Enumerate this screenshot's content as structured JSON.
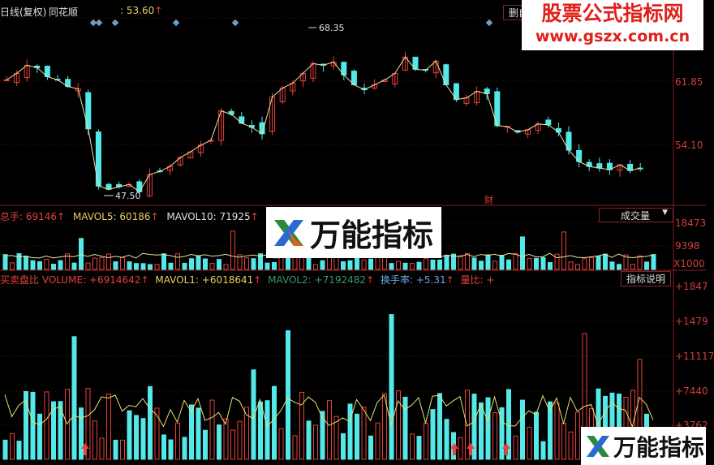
{
  "header": {
    "period": "日线(复权)",
    "stock": "同花顺",
    "price_label": ":",
    "price": "53.60",
    "button": "删自"
  },
  "main": {
    "axis": [
      "61.85",
      "54.10"
    ],
    "high_label": "68.35",
    "low_label": "47.50",
    "cai_label": "财",
    "closes": [
      62.0,
      62.8,
      63.8,
      63.5,
      62.4,
      62.0,
      61.2,
      60.9,
      56.0,
      49.0,
      48.6,
      48.9,
      49.2,
      48.3,
      50.4,
      50.8,
      51.4,
      52.5,
      53.2,
      54.0,
      54.6,
      58.2,
      57.8,
      56.7,
      56.2,
      55.4,
      59.9,
      61.0,
      61.6,
      62.8,
      64.0,
      63.8,
      64.2,
      62.6,
      61.4,
      60.8,
      61.4,
      62.0,
      62.8,
      64.8,
      63.3,
      63.2,
      64.3,
      61.4,
      59.6,
      59.8,
      60.6,
      60.3,
      56.4,
      56.3,
      55.6,
      55.9,
      56.6,
      56.5,
      55.6,
      53.4,
      52.0,
      51.4,
      51.2,
      51.0,
      51.6,
      50.9,
      51.2
    ]
  },
  "volume": {
    "label": "总手: 69146",
    "mavol5": "MAVOL5: 60186",
    "mavol10": "MAVOL10: 71925",
    "dropdown": "成交量",
    "axis": [
      "18473",
      "9398",
      "X1000"
    ]
  },
  "indicator": {
    "name": "买卖盘比",
    "volume": "VOLUME: +6914642",
    "mavol1": "MAVOL1: +6018641",
    "mavol2": "MAVOL2: +7192482",
    "turnover": "换手率: +5.31",
    "ratio": "量比: +",
    "button": "指标说明",
    "axis": [
      "+1847",
      "+1479",
      "+11117",
      "+7440",
      "+3762"
    ]
  },
  "watermark": {
    "title": "股票公式指标网",
    "url": "www.gszx.com.cn",
    "logo": "万能指标"
  },
  "colors": {
    "up": "#e8403a",
    "down": "#54e8e8",
    "ma": "#f0e0a0",
    "grid": "#6a1010"
  }
}
